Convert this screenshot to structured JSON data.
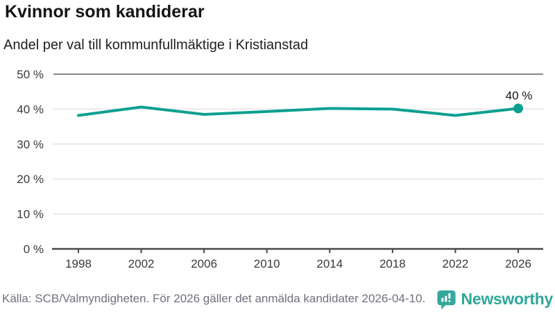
{
  "chart_data": {
    "type": "line",
    "title": "Kvinnor som kandiderar",
    "subtitle": "Andel per val till kommunfullmäktige i Kristianstad",
    "x": [
      "1998",
      "2002",
      "2006",
      "2010",
      "2014",
      "2018",
      "2022",
      "2026"
    ],
    "series": [
      {
        "name": "Andel kvinnor som kandiderar",
        "values": [
          38.2,
          40.6,
          38.5,
          39.3,
          40.2,
          40.0,
          38.2,
          40.2
        ]
      }
    ],
    "end_point_label": "40 %",
    "ylim": [
      0,
      50
    ],
    "yticks": [
      0,
      10,
      20,
      30,
      40,
      50
    ],
    "ytick_labels": [
      "0 %",
      "10 %",
      "20 %",
      "30 %",
      "40 %",
      "50 %"
    ],
    "grid": true,
    "legend": "none"
  },
  "footer": {
    "source": "Källa: SCB/Valmyndigheten. För 2026 gäller det anmälda kandidater 2026-04-10.",
    "brand": "Newsworthy"
  },
  "colors": {
    "line": "#0b9f90",
    "marker": "#0b9f90",
    "gridline": "#e3e3e3",
    "top_gridline": "#858585",
    "axis": "#474747",
    "tick_label": "#3a3a3a",
    "annotation": "#141414",
    "source_text": "#70707c",
    "brand_teal": "#2ea79a",
    "icon_teal": "#35a79c"
  }
}
